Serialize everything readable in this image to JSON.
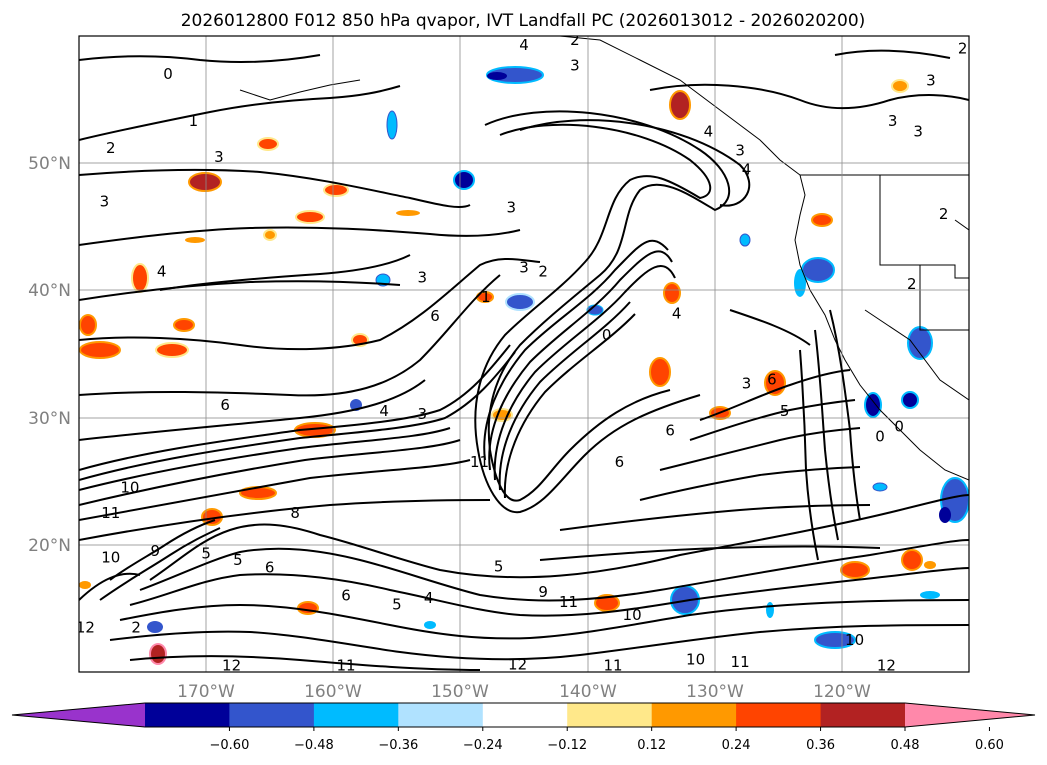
{
  "title": "2026012800 F012 850 hPa qvapor, IVT Landfall PC (2026013012 - 2026020200)",
  "lat_labels": [
    "50°N",
    "40°N",
    "30°N",
    "20°N"
  ],
  "lat_values": [
    50,
    40,
    30,
    20
  ],
  "lon_labels": [
    "170°W",
    "160°W",
    "150°W",
    "140°W",
    "130°W",
    "120°W"
  ],
  "lon_values": [
    -170,
    -160,
    -150,
    -140,
    -130,
    -120
  ],
  "extent": {
    "lon_min": -180,
    "lon_max": -110,
    "lat_min": 10,
    "lat_max": 60
  },
  "colorbar": {
    "ticks": [
      "−0.60",
      "−0.48",
      "−0.36",
      "−0.24",
      "−0.12",
      "0.12",
      "0.24",
      "0.36",
      "0.48",
      "0.60"
    ],
    "colors": [
      "#9933cc",
      "#000099",
      "#3355cc",
      "#00bbff",
      "#b0e2ff",
      "#ffffff",
      "#ffe88a",
      "#ff9900",
      "#ff4400",
      "#b22222",
      "#ff88aa"
    ],
    "extend": "both"
  },
  "contour_labels": [
    {
      "text": "0",
      "lon": -173,
      "lat": 57
    },
    {
      "text": "2",
      "lon": -177.5,
      "lat": 51.2
    },
    {
      "text": "1",
      "lon": -171,
      "lat": 53.3
    },
    {
      "text": "3",
      "lon": -169,
      "lat": 50.5
    },
    {
      "text": "3",
      "lon": -178,
      "lat": 47
    },
    {
      "text": "4",
      "lon": -173.5,
      "lat": 41.5
    },
    {
      "text": "3",
      "lon": -153,
      "lat": 41
    },
    {
      "text": "3",
      "lon": -146,
      "lat": 46.5
    },
    {
      "text": "4",
      "lon": -145,
      "lat": 59.3
    },
    {
      "text": "3",
      "lon": -141,
      "lat": 57.7
    },
    {
      "text": "4",
      "lon": -130.5,
      "lat": 52.5
    },
    {
      "text": "3",
      "lon": -128,
      "lat": 51
    },
    {
      "text": "4",
      "lon": -127.5,
      "lat": 49.5
    },
    {
      "text": "3",
      "lon": -145,
      "lat": 41.8
    },
    {
      "text": "2",
      "lon": -143.5,
      "lat": 41.5
    },
    {
      "text": "1",
      "lon": -148,
      "lat": 39.5
    },
    {
      "text": "6",
      "lon": -152,
      "lat": 38
    },
    {
      "text": "6",
      "lon": -168.5,
      "lat": 31
    },
    {
      "text": "4",
      "lon": -156,
      "lat": 30.5
    },
    {
      "text": "3",
      "lon": -153,
      "lat": 30.3
    },
    {
      "text": "0",
      "lon": -138.5,
      "lat": 36.5
    },
    {
      "text": "4",
      "lon": -133,
      "lat": 38.2
    },
    {
      "text": "3",
      "lon": -127.5,
      "lat": 32.7
    },
    {
      "text": "6",
      "lon": -125.5,
      "lat": 33
    },
    {
      "text": "5",
      "lon": -124.5,
      "lat": 30.5
    },
    {
      "text": "6",
      "lon": -133.5,
      "lat": 29
    },
    {
      "text": "6",
      "lon": -137.5,
      "lat": 26.5
    },
    {
      "text": "11",
      "lon": -148.5,
      "lat": 26.5
    },
    {
      "text": "10",
      "lon": -176,
      "lat": 24.5
    },
    {
      "text": "11",
      "lon": -177.5,
      "lat": 22.5
    },
    {
      "text": "8",
      "lon": -163,
      "lat": 22.5
    },
    {
      "text": "9",
      "lon": -174,
      "lat": 19.5
    },
    {
      "text": "10",
      "lon": -177.5,
      "lat": 19
    },
    {
      "text": "5",
      "lon": -170,
      "lat": 19.3
    },
    {
      "text": "5",
      "lon": -167.5,
      "lat": 18.8
    },
    {
      "text": "6",
      "lon": -165,
      "lat": 18.2
    },
    {
      "text": "5",
      "lon": -147,
      "lat": 18.3
    },
    {
      "text": "6",
      "lon": -159,
      "lat": 16
    },
    {
      "text": "5",
      "lon": -155,
      "lat": 15.3
    },
    {
      "text": "4",
      "lon": -152.5,
      "lat": 15.8
    },
    {
      "text": "9",
      "lon": -143.5,
      "lat": 16.3
    },
    {
      "text": "11",
      "lon": -141.5,
      "lat": 15.5
    },
    {
      "text": "10",
      "lon": -136.5,
      "lat": 14.5
    },
    {
      "text": "11",
      "lon": -138,
      "lat": 10.5
    },
    {
      "text": "10",
      "lon": -131.5,
      "lat": 11
    },
    {
      "text": "11",
      "lon": -128,
      "lat": 10.8
    },
    {
      "text": "10",
      "lon": -119,
      "lat": 12.5
    },
    {
      "text": "12",
      "lon": -116.5,
      "lat": 10.5
    },
    {
      "text": "12",
      "lon": -168,
      "lat": 10.5
    },
    {
      "text": "11",
      "lon": -159,
      "lat": 10.5
    },
    {
      "text": "12",
      "lon": -145.5,
      "lat": 10.6
    },
    {
      "text": "2",
      "lon": -114.5,
      "lat": 40.5
    },
    {
      "text": "0",
      "lon": -117,
      "lat": 28.5
    },
    {
      "text": "0",
      "lon": -115.5,
      "lat": 29.3
    },
    {
      "text": "3",
      "lon": -113,
      "lat": 56.5
    },
    {
      "text": "3",
      "lon": -116,
      "lat": 53.3
    },
    {
      "text": "3",
      "lon": -114,
      "lat": 52.5
    },
    {
      "text": "2",
      "lon": -112,
      "lat": 46
    },
    {
      "text": "2",
      "lon": -110.5,
      "lat": 59
    },
    {
      "text": "2",
      "lon": -141,
      "lat": 59.7
    },
    {
      "text": "12",
      "lon": -179.5,
      "lat": 13.5
    },
    {
      "text": "2",
      "lon": -175.5,
      "lat": 13.5
    }
  ]
}
